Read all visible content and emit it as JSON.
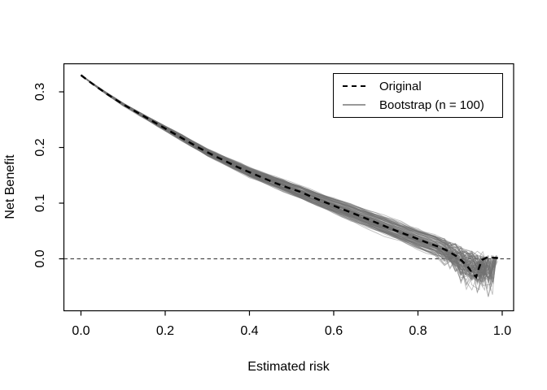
{
  "colors": {
    "background": "#ffffff",
    "axis": "#000000",
    "text": "#000000",
    "original_line": "#000000",
    "bootstrap_line": "#707070",
    "zero_line": "#4a4a4a"
  },
  "chart_data": {
    "type": "line",
    "title": "",
    "xlabel": "Estimated risk",
    "ylabel": "Net Benefit",
    "xlim": [
      -0.0405,
      1.0271
    ],
    "ylim": [
      -0.0934,
      0.3504
    ],
    "x_ticks": [
      0,
      0.2,
      0.4,
      0.6,
      0.8,
      1.0
    ],
    "x_tick_labels": [
      "0.0",
      "0.2",
      "0.4",
      "0.6",
      "0.8",
      "1.0"
    ],
    "y_ticks": [
      0,
      0.1,
      0.2,
      0.3
    ],
    "y_tick_labels": [
      "0.0",
      "0.1",
      "0.2",
      "0.3"
    ],
    "grid": false,
    "zero_line": {
      "y": 0,
      "style": "dashed",
      "color": "#4a4a4a",
      "dash": [
        4.5,
        3.5
      ],
      "width": 1.3
    },
    "legend": {
      "position": "top-right",
      "entries": [
        {
          "label": "Original",
          "line_style": "dashed",
          "color": "#000000",
          "width": 2.5
        },
        {
          "label": "Bootstrap (n = 100)",
          "line_style": "solid",
          "color": "#999999",
          "width": 1
        }
      ]
    },
    "series": [
      {
        "name": "Original",
        "color": "#000000",
        "style": "dashed",
        "dash": [
          7.5,
          5.5
        ],
        "width": 2.4,
        "points": [
          [
            0.0,
            0.33
          ],
          [
            0.02,
            0.3185
          ],
          [
            0.04,
            0.3075
          ],
          [
            0.06,
            0.297
          ],
          [
            0.08,
            0.287
          ],
          [
            0.1,
            0.2775
          ],
          [
            0.13,
            0.2645
          ],
          [
            0.16,
            0.2515
          ],
          [
            0.19,
            0.2385
          ],
          [
            0.22,
            0.2255
          ],
          [
            0.25,
            0.2125
          ],
          [
            0.28,
            0.1995
          ],
          [
            0.31,
            0.1875
          ],
          [
            0.34,
            0.1765
          ],
          [
            0.37,
            0.1655
          ],
          [
            0.4,
            0.1555
          ],
          [
            0.43,
            0.146
          ],
          [
            0.46,
            0.1365
          ],
          [
            0.49,
            0.128
          ],
          [
            0.52,
            0.1205
          ],
          [
            0.55,
            0.1105
          ],
          [
            0.58,
            0.1015
          ],
          [
            0.61,
            0.0925
          ],
          [
            0.64,
            0.0835
          ],
          [
            0.67,
            0.0745
          ],
          [
            0.7,
            0.0655
          ],
          [
            0.73,
            0.056
          ],
          [
            0.76,
            0.047
          ],
          [
            0.79,
            0.0385
          ],
          [
            0.82,
            0.0295
          ],
          [
            0.85,
            0.0215
          ],
          [
            0.87,
            0.0145
          ],
          [
            0.89,
            0.0055
          ],
          [
            0.905,
            -0.004
          ],
          [
            0.92,
            -0.016
          ],
          [
            0.93,
            -0.026
          ],
          [
            0.938,
            -0.033
          ],
          [
            0.944,
            -0.018
          ],
          [
            0.952,
            -0.002
          ],
          [
            0.965,
            0.003
          ],
          [
            0.978,
            0.002
          ],
          [
            0.99,
            0.0015
          ]
        ]
      },
      {
        "name": "Bootstrap",
        "color": "#707070",
        "opacity": 0.45,
        "width": 0.9,
        "n": 100,
        "procedural": true,
        "seed": 11,
        "base_points": [
          [
            0.0,
            0.33
          ],
          [
            0.05,
            0.3022
          ],
          [
            0.1,
            0.2775
          ],
          [
            0.2,
            0.2342
          ],
          [
            0.3,
            0.1912
          ],
          [
            0.4,
            0.1555
          ],
          [
            0.5,
            0.1255
          ],
          [
            0.6,
            0.0955
          ],
          [
            0.7,
            0.0655
          ],
          [
            0.8,
            0.0355
          ],
          [
            0.85,
            0.0215
          ],
          [
            0.89,
            0.0055
          ],
          [
            0.92,
            -0.008
          ],
          [
            0.95,
            -0.014
          ],
          [
            0.99,
            -0.016
          ]
        ],
        "params": {
          "step": 0.02,
          "tail_start": 0.85,
          "tail_step": 0.013,
          "bias_spread": 0.04,
          "wiggle": 0.0035,
          "end_x_min": 0.948,
          "end_x_max": 0.99,
          "dip_ramp_start": 0.78,
          "dip_ramp_span": 0.19,
          "dip_prob": 0.27,
          "dip_max": 0.05,
          "end_dip_min": 0.015,
          "end_dip_max": 0.055
        }
      }
    ]
  }
}
